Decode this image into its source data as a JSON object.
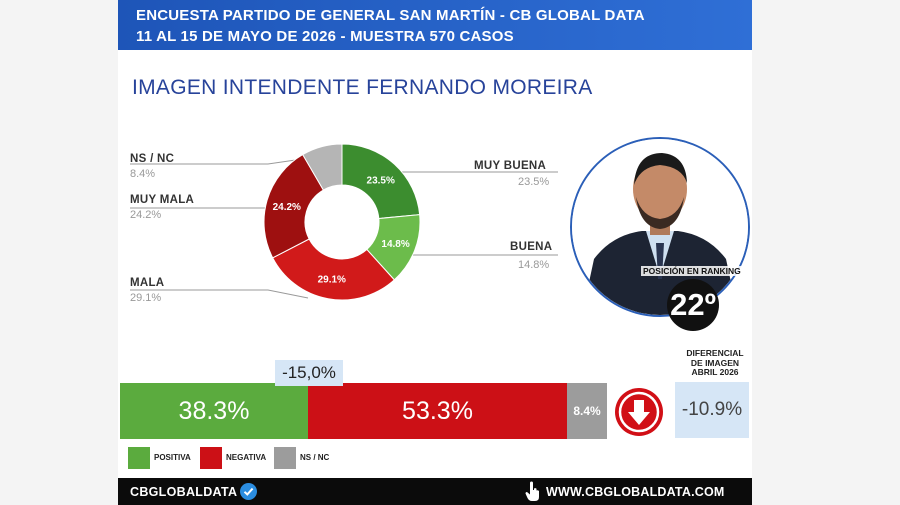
{
  "header": {
    "line1": "ENCUESTA PARTIDO DE GENERAL SAN MARTÍN - CB GLOBAL DATA",
    "line2": "11 AL 15 DE MAYO DE 2026 - MUESTRA 570 CASOS"
  },
  "title": "IMAGEN INTENDENTE  FERNANDO MOREIRA",
  "chart_data": [
    {
      "type": "pie",
      "slices": [
        {
          "label": "MUY BUENA",
          "value": 23.5,
          "value_label": "23.5%",
          "color": "#3c8d2f"
        },
        {
          "label": "BUENA",
          "value": 14.8,
          "value_label": "14.8%",
          "color": "#6cbc4b"
        },
        {
          "label": "MALA",
          "value": 29.1,
          "value_label": "29.1%",
          "color": "#d11a1a"
        },
        {
          "label": "MUY MALA",
          "value": 24.2,
          "value_label": "24.2%",
          "color": "#9e1010"
        },
        {
          "label": "NS / NC",
          "value": 8.4,
          "value_label": "8.4%",
          "color": "#b5b5b5"
        }
      ]
    },
    {
      "type": "bar",
      "orientation": "stacked-horizontal",
      "categories": [
        "POSITIVA",
        "NEGATIVA",
        "NS / NC"
      ],
      "values": [
        38.3,
        53.3,
        8.4
      ],
      "value_labels": [
        "38.3%",
        "53.3%",
        "8.4%"
      ],
      "colors": [
        "#5bab3e",
        "#cc1016",
        "#9c9c9c"
      ]
    }
  ],
  "ranking": {
    "label": "POSICIÓN EN RANKING",
    "value": "22º"
  },
  "differential": "-15,0%",
  "april": {
    "label_lines": [
      "DIFERENCIAL",
      "DE IMAGEN",
      "ABRIL 2026"
    ],
    "value": "-10.9%"
  },
  "footer": {
    "brand": "CBGLOBALDATA",
    "url": "WWW.CBGLOBALDATA.COM"
  },
  "icons": {
    "down": "arrow-down-icon",
    "verified": "verified-badge-icon",
    "hand": "hand-pointer-icon"
  },
  "colors": {
    "header": "#2459c4",
    "title": "#27439a",
    "positive": "#5bab3e",
    "negative": "#cc1016",
    "nsnc": "#9c9c9c"
  }
}
